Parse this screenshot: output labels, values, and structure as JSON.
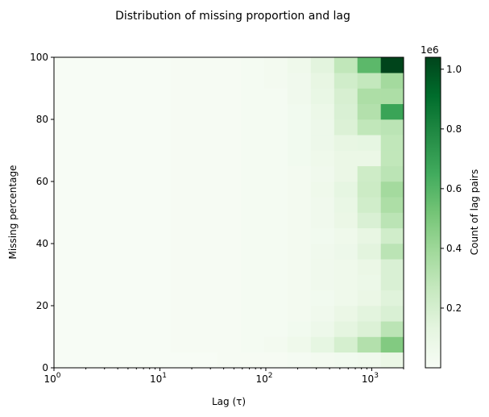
{
  "chart_data": {
    "type": "heatmap",
    "title": "Distribution of missing proportion and lag",
    "xlabel": "Lag (τ)",
    "ylabel": "Missing percentage",
    "xscale": "log",
    "xlim": [
      1,
      2000
    ],
    "ylim": [
      0,
      100
    ],
    "x_ticks": [
      {
        "value": 1,
        "base": "10",
        "exp": "0"
      },
      {
        "value": 10,
        "base": "10",
        "exp": "1"
      },
      {
        "value": 100,
        "base": "10",
        "exp": "2"
      },
      {
        "value": 1000,
        "base": "10",
        "exp": "3"
      }
    ],
    "y_ticks": [
      0,
      20,
      40,
      60,
      80,
      100
    ],
    "x_bin_edges": [
      1,
      1.66,
      2.76,
      4.58,
      7.6,
      12.6,
      21,
      34.9,
      58,
      96.3,
      160,
      266,
      442,
      733,
      1218,
      2000
    ],
    "y_bin_edges": [
      0,
      5,
      10,
      15,
      20,
      25,
      30,
      35,
      40,
      45,
      50,
      55,
      60,
      65,
      70,
      75,
      80,
      85,
      90,
      95,
      100
    ],
    "counts": [
      [
        0.0,
        0.0,
        0.0,
        0.0,
        0.0,
        0.0,
        0.0,
        0.01,
        0.01,
        0.01,
        0.02,
        0.03,
        0.04,
        0.05,
        0.09
      ],
      [
        0.0,
        0.0,
        0.0,
        0.0,
        0.0,
        0.01,
        0.01,
        0.01,
        0.02,
        0.03,
        0.06,
        0.12,
        0.2,
        0.33,
        0.48
      ],
      [
        0.0,
        0.0,
        0.0,
        0.0,
        0.0,
        0.01,
        0.01,
        0.01,
        0.02,
        0.02,
        0.04,
        0.07,
        0.13,
        0.17,
        0.3
      ],
      [
        0.0,
        0.0,
        0.0,
        0.0,
        0.0,
        0.01,
        0.01,
        0.01,
        0.02,
        0.02,
        0.03,
        0.05,
        0.09,
        0.14,
        0.18
      ],
      [
        0.0,
        0.0,
        0.0,
        0.0,
        0.0,
        0.01,
        0.01,
        0.01,
        0.02,
        0.02,
        0.03,
        0.04,
        0.06,
        0.09,
        0.15
      ],
      [
        0.0,
        0.0,
        0.0,
        0.0,
        0.0,
        0.01,
        0.01,
        0.01,
        0.02,
        0.02,
        0.03,
        0.05,
        0.06,
        0.08,
        0.18
      ],
      [
        0.0,
        0.0,
        0.0,
        0.0,
        0.0,
        0.01,
        0.01,
        0.01,
        0.02,
        0.02,
        0.03,
        0.05,
        0.06,
        0.09,
        0.18
      ],
      [
        0.0,
        0.0,
        0.0,
        0.0,
        0.0,
        0.01,
        0.01,
        0.01,
        0.02,
        0.02,
        0.03,
        0.05,
        0.07,
        0.14,
        0.3
      ],
      [
        0.0,
        0.0,
        0.0,
        0.0,
        0.0,
        0.01,
        0.01,
        0.01,
        0.02,
        0.02,
        0.03,
        0.04,
        0.06,
        0.11,
        0.22
      ],
      [
        0.0,
        0.0,
        0.0,
        0.0,
        0.0,
        0.01,
        0.01,
        0.01,
        0.02,
        0.02,
        0.03,
        0.05,
        0.09,
        0.18,
        0.3
      ],
      [
        0.0,
        0.0,
        0.0,
        0.0,
        0.0,
        0.01,
        0.01,
        0.01,
        0.02,
        0.02,
        0.03,
        0.05,
        0.1,
        0.22,
        0.35
      ],
      [
        0.0,
        0.0,
        0.0,
        0.0,
        0.0,
        0.01,
        0.01,
        0.01,
        0.02,
        0.02,
        0.03,
        0.06,
        0.12,
        0.24,
        0.38
      ],
      [
        0.0,
        0.0,
        0.0,
        0.0,
        0.0,
        0.01,
        0.01,
        0.01,
        0.02,
        0.02,
        0.03,
        0.05,
        0.09,
        0.23,
        0.3
      ],
      [
        0.0,
        0.0,
        0.0,
        0.0,
        0.0,
        0.01,
        0.01,
        0.01,
        0.02,
        0.02,
        0.04,
        0.06,
        0.09,
        0.09,
        0.28
      ],
      [
        0.0,
        0.0,
        0.0,
        0.0,
        0.0,
        0.01,
        0.01,
        0.01,
        0.02,
        0.02,
        0.04,
        0.07,
        0.11,
        0.12,
        0.28
      ],
      [
        0.0,
        0.0,
        0.0,
        0.0,
        0.0,
        0.01,
        0.01,
        0.01,
        0.02,
        0.02,
        0.04,
        0.07,
        0.17,
        0.28,
        0.3
      ],
      [
        0.0,
        0.0,
        0.0,
        0.0,
        0.0,
        0.01,
        0.01,
        0.01,
        0.02,
        0.02,
        0.04,
        0.08,
        0.18,
        0.33,
        0.68
      ],
      [
        0.0,
        0.0,
        0.0,
        0.0,
        0.0,
        0.01,
        0.01,
        0.01,
        0.02,
        0.02,
        0.05,
        0.1,
        0.19,
        0.35,
        0.35
      ],
      [
        0.0,
        0.0,
        0.0,
        0.0,
        0.0,
        0.01,
        0.01,
        0.01,
        0.02,
        0.03,
        0.05,
        0.11,
        0.22,
        0.27,
        0.38
      ],
      [
        0.0,
        0.0,
        0.0,
        0.0,
        0.0,
        0.01,
        0.01,
        0.01,
        0.02,
        0.03,
        0.06,
        0.14,
        0.28,
        0.58,
        1.04
      ]
    ],
    "colorbar": {
      "label": "Count of lag pairs",
      "multiplier": "1e6",
      "ticks": [
        0.2,
        0.4,
        0.6,
        0.8,
        1.0
      ],
      "tick_labels": [
        "0.2",
        "0.4",
        "0.6",
        "0.8",
        "1.0"
      ],
      "vmin": 0,
      "vmax": 1.04,
      "colors": [
        "#f7fcf5",
        "#e5f5e0",
        "#c7e9c0",
        "#a1d99b",
        "#74c476",
        "#41ab5d",
        "#238b45",
        "#006d2c",
        "#00441b"
      ]
    },
    "grid": false,
    "legend": "none"
  }
}
